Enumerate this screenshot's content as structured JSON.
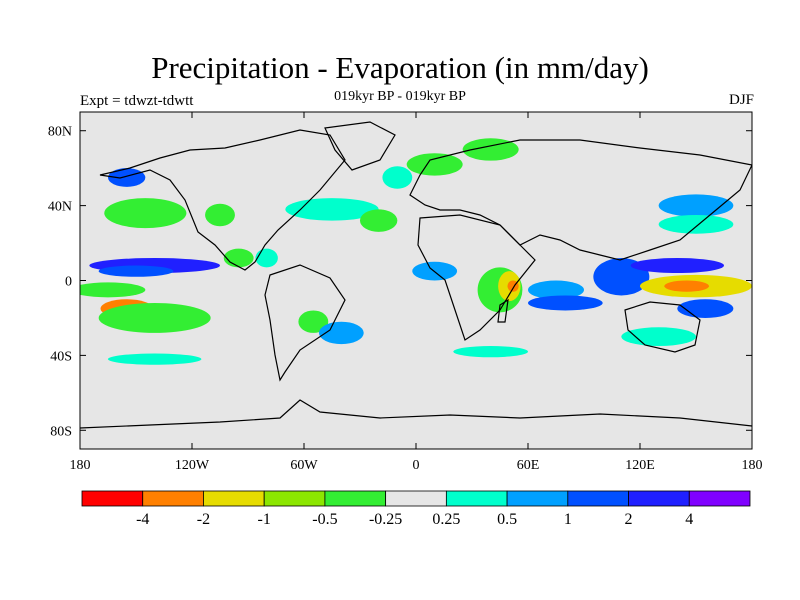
{
  "header": {
    "title": "Precipitation - Evaporation (in mm/day)",
    "subtitle": "019kyr BP - 019kyr BP",
    "experiment": "Expt = tdwzt-tdwtt",
    "season": "DJF"
  },
  "map": {
    "ocean_color": "#e6e6e6",
    "coast_color": "#000000",
    "x_ticks": [
      {
        "lon": -180,
        "label": "180"
      },
      {
        "lon": -120,
        "label": "120W"
      },
      {
        "lon": -60,
        "label": "60W"
      },
      {
        "lon": 0,
        "label": "0"
      },
      {
        "lon": 60,
        "label": "60E"
      },
      {
        "lon": 120,
        "label": "120E"
      },
      {
        "lon": 180,
        "label": "180"
      }
    ],
    "y_ticks": [
      {
        "lat": 80,
        "label": "80N"
      },
      {
        "lat": 40,
        "label": "40N"
      },
      {
        "lat": 0,
        "label": "0"
      },
      {
        "lat": -40,
        "label": "40S"
      },
      {
        "lat": -80,
        "label": "80S"
      }
    ],
    "lon_range": [
      -180,
      180
    ],
    "lat_range": [
      -90,
      90
    ]
  },
  "colorbar": {
    "colors": [
      "#ff0000",
      "#ff8000",
      "#e6dc00",
      "#8ce600",
      "#33ee33",
      "#e6e6e6",
      "#00ffcc",
      "#00a0ff",
      "#0050ff",
      "#2020ff",
      "#8000ff"
    ],
    "labels": [
      "-4",
      "-2",
      "-1",
      "-0.5",
      "-0.25",
      "0.25",
      "0.5",
      "1",
      "2",
      "4"
    ]
  },
  "fields": [
    {
      "lon": -155,
      "lat": -15,
      "rx": 14,
      "ry": 5,
      "level": "#ff8000"
    },
    {
      "lon": -152,
      "lat": -15,
      "rx": 4,
      "ry": 2,
      "level": "#ff0000"
    },
    {
      "lon": -140,
      "lat": -20,
      "rx": 30,
      "ry": 8,
      "level": "#33ee33"
    },
    {
      "lon": -165,
      "lat": -5,
      "rx": 20,
      "ry": 4,
      "level": "#33ee33"
    },
    {
      "lon": -140,
      "lat": 8,
      "rx": 35,
      "ry": 4,
      "level": "#2020ff"
    },
    {
      "lon": -150,
      "lat": 5,
      "rx": 20,
      "ry": 3,
      "level": "#0050ff"
    },
    {
      "lon": -145,
      "lat": 36,
      "rx": 22,
      "ry": 8,
      "level": "#33ee33"
    },
    {
      "lon": -155,
      "lat": 55,
      "rx": 10,
      "ry": 5,
      "level": "#0050ff"
    },
    {
      "lon": -105,
      "lat": 35,
      "rx": 8,
      "ry": 6,
      "level": "#33ee33"
    },
    {
      "lon": -95,
      "lat": 12,
      "rx": 8,
      "ry": 5,
      "level": "#33ee33"
    },
    {
      "lon": -80,
      "lat": 12,
      "rx": 6,
      "ry": 5,
      "level": "#00ffcc"
    },
    {
      "lon": -55,
      "lat": -22,
      "rx": 8,
      "ry": 6,
      "level": "#33ee33"
    },
    {
      "lon": -40,
      "lat": -28,
      "rx": 12,
      "ry": 6,
      "level": "#00a0ff"
    },
    {
      "lon": -45,
      "lat": 38,
      "rx": 25,
      "ry": 6,
      "level": "#00ffcc"
    },
    {
      "lon": -20,
      "lat": 32,
      "rx": 10,
      "ry": 6,
      "level": "#33ee33"
    },
    {
      "lon": 10,
      "lat": 62,
      "rx": 15,
      "ry": 6,
      "level": "#33ee33"
    },
    {
      "lon": -10,
      "lat": 55,
      "rx": 8,
      "ry": 6,
      "level": "#00ffcc"
    },
    {
      "lon": 10,
      "lat": 5,
      "rx": 12,
      "ry": 5,
      "level": "#00a0ff"
    },
    {
      "lon": 45,
      "lat": -5,
      "rx": 12,
      "ry": 12,
      "level": "#33ee33"
    },
    {
      "lon": 50,
      "lat": -3,
      "rx": 6,
      "ry": 8,
      "level": "#e6dc00"
    },
    {
      "lon": 52,
      "lat": -3,
      "rx": 3,
      "ry": 3,
      "level": "#ff8000"
    },
    {
      "lon": 75,
      "lat": -5,
      "rx": 15,
      "ry": 5,
      "level": "#00a0ff"
    },
    {
      "lon": 80,
      "lat": -12,
      "rx": 20,
      "ry": 4,
      "level": "#0050ff"
    },
    {
      "lon": 110,
      "lat": 2,
      "rx": 15,
      "ry": 10,
      "level": "#0050ff"
    },
    {
      "lon": 140,
      "lat": 8,
      "rx": 25,
      "ry": 4,
      "level": "#2020ff"
    },
    {
      "lon": 150,
      "lat": -3,
      "rx": 30,
      "ry": 6,
      "level": "#e6dc00"
    },
    {
      "lon": 145,
      "lat": -3,
      "rx": 12,
      "ry": 3,
      "level": "#ff8000"
    },
    {
      "lon": 155,
      "lat": -15,
      "rx": 15,
      "ry": 5,
      "level": "#0050ff"
    },
    {
      "lon": 150,
      "lat": 40,
      "rx": 20,
      "ry": 6,
      "level": "#00a0ff"
    },
    {
      "lon": 150,
      "lat": 30,
      "rx": 20,
      "ry": 5,
      "level": "#00ffcc"
    },
    {
      "lon": 40,
      "lat": 70,
      "rx": 15,
      "ry": 6,
      "level": "#33ee33"
    },
    {
      "lon": 130,
      "lat": -30,
      "rx": 20,
      "ry": 5,
      "level": "#00ffcc"
    },
    {
      "lon": -140,
      "lat": -42,
      "rx": 25,
      "ry": 3,
      "level": "#00ffcc"
    },
    {
      "lon": 40,
      "lat": -38,
      "rx": 20,
      "ry": 3,
      "level": "#00ffcc"
    }
  ]
}
